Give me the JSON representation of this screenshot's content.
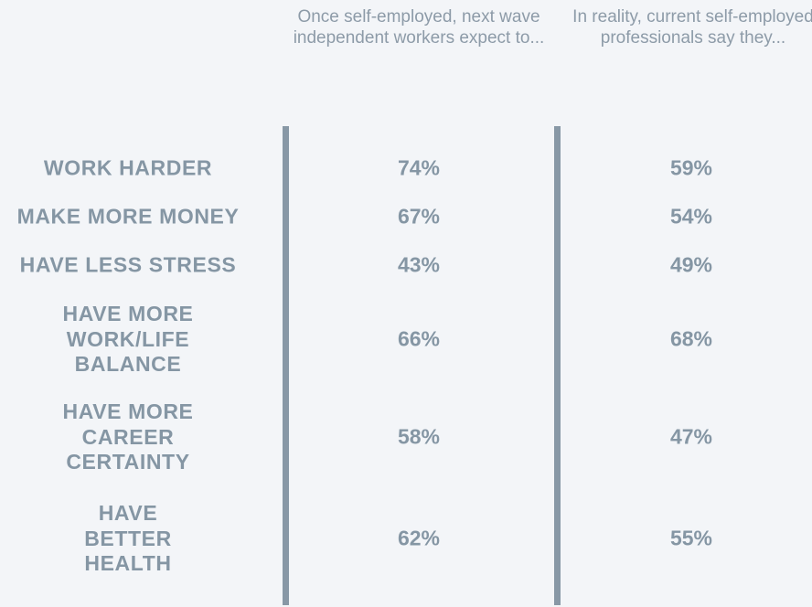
{
  "chart_data": {
    "type": "table",
    "columns": [
      "Once self-employed, next wave independent workers expect to...",
      "In reality, current self-employed professionals say they..."
    ],
    "rows": [
      {
        "label": "WORK HARDER",
        "expect": "74%",
        "reality": "59%"
      },
      {
        "label": "MAKE MORE MONEY",
        "expect": "67%",
        "reality": "54%"
      },
      {
        "label": "HAVE LESS STRESS",
        "expect": "43%",
        "reality": "49%"
      },
      {
        "label": "HAVE MORE\nWORK/LIFE\nBALANCE",
        "expect": "66%",
        "reality": "68%"
      },
      {
        "label": "HAVE MORE\nCAREER\nCERTAINTY",
        "expect": "58%",
        "reality": "47%"
      },
      {
        "label": "HAVE\nBETTER\nHEALTH",
        "expect": "62%",
        "reality": "55%"
      }
    ],
    "colors": {
      "text": "#8596a4",
      "divider": "#8898a6",
      "background": "#f3f5f8"
    }
  }
}
